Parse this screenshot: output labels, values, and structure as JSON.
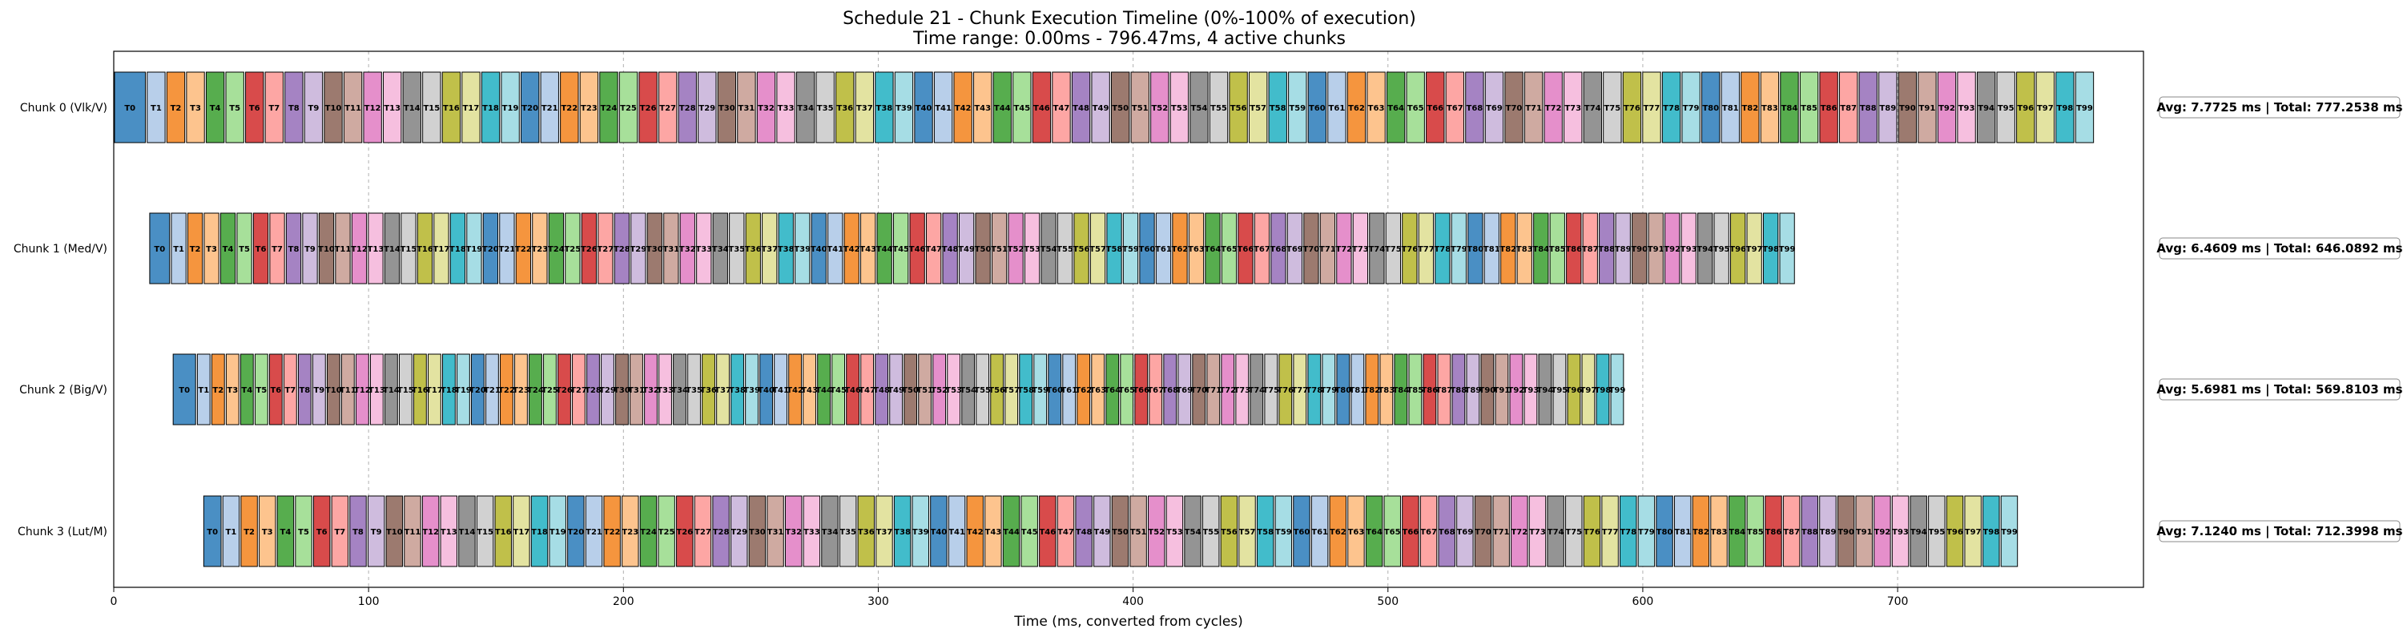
{
  "chart_data": {
    "type": "gantt",
    "title_line1": "Schedule 21 - Chunk Execution Timeline (0%-100% of execution)",
    "title_line2": "Time range: 0.00ms - 796.47ms, 4 active chunks",
    "xlabel": "Time (ms, converted from cycles)",
    "xlim": [
      0,
      796.47
    ],
    "xticks": [
      0,
      100,
      200,
      300,
      400,
      500,
      600,
      700
    ],
    "grid_x": true,
    "palette": [
      "#4a8fc4",
      "#b8cfea",
      "#f5953e",
      "#fdc48e",
      "#57ad4e",
      "#a7e09a",
      "#d84b4b",
      "#fda6a4",
      "#a583c3",
      "#cfbcde",
      "#9c7a6f",
      "#cfaaa1",
      "#e58fcb",
      "#f6bfdf",
      "#949494",
      "#d1d1d1",
      "#c0c04a",
      "#e3e3a1",
      "#42bccb",
      "#a6dde5"
    ],
    "chunks": [
      {
        "name": "Chunk 0 (Vlk/V)",
        "start": 0.0,
        "first_dur": 12.8,
        "avg": 7.7725,
        "summary": "Avg: 7.7725 ms | Total: 777.2538 ms"
      },
      {
        "name": "Chunk 1 (Med/V)",
        "start": 13.8,
        "first_dur": 8.5,
        "avg": 6.4609,
        "summary": "Avg: 6.4609 ms | Total: 646.0892 ms"
      },
      {
        "name": "Chunk 2 (Big/V)",
        "start": 23.0,
        "first_dur": 9.5,
        "avg": 5.6981,
        "summary": "Avg: 5.6981 ms | Total: 569.8103 ms"
      },
      {
        "name": "Chunk 3 (Lut/M)",
        "start": 35.0,
        "first_dur": 7.5,
        "avg": 7.124,
        "summary": "Avg: 7.1240 ms | Total: 712.3998 ms"
      }
    ],
    "tasks_per_chunk": 100,
    "task_prefix": "T"
  }
}
